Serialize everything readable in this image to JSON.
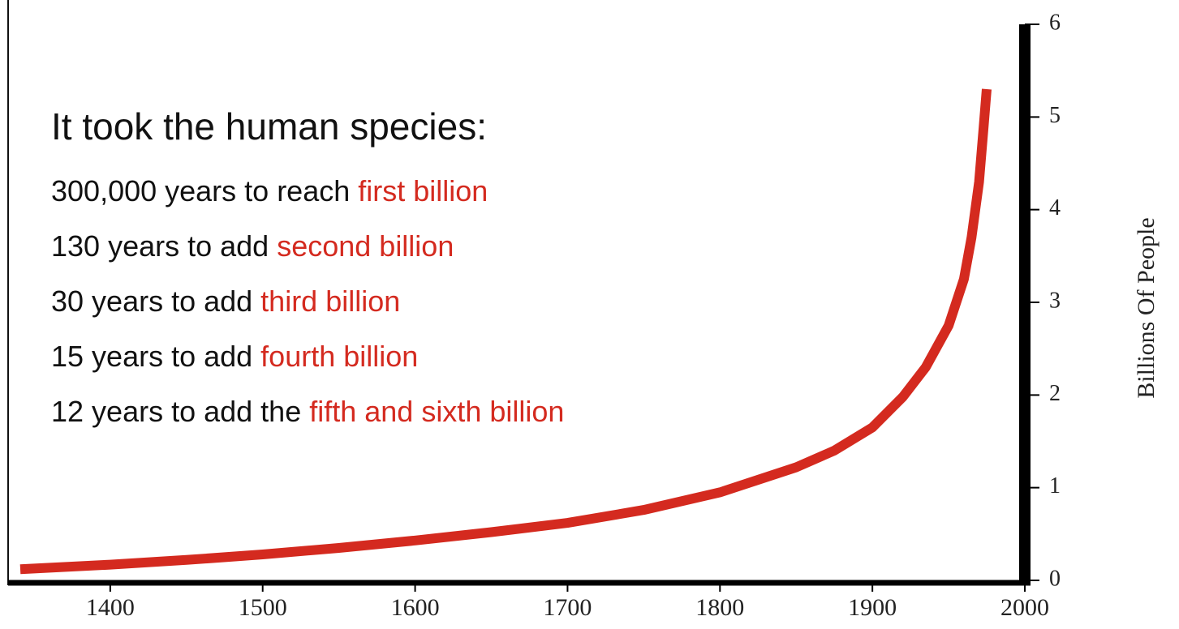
{
  "chart_data": {
    "type": "line",
    "title": "It took the human species:",
    "annotations": [
      {
        "text": "300,000 years to reach ",
        "highlight": "first billion"
      },
      {
        "text": "130 years to add ",
        "highlight": "second billion"
      },
      {
        "text": "30 years to add ",
        "highlight": "third billion"
      },
      {
        "text": "15 years to add ",
        "highlight": "fourth billion"
      },
      {
        "text": "12 years to add the ",
        "highlight": "fifth and sixth billion"
      }
    ],
    "highlight_color": "#d42a1f",
    "y_axis_label": "Billions Of People",
    "x": [
      1341,
      1400,
      1450,
      1500,
      1550,
      1600,
      1650,
      1700,
      1750,
      1800,
      1850,
      1875,
      1900,
      1920,
      1935,
      1950,
      1960,
      1965,
      1970,
      1973,
      1975
    ],
    "series": [
      {
        "color": "#d42a1f",
        "values": [
          0.12,
          0.17,
          0.22,
          0.28,
          0.35,
          0.43,
          0.52,
          0.62,
          0.76,
          0.95,
          1.22,
          1.4,
          1.65,
          1.98,
          2.3,
          2.75,
          3.25,
          3.7,
          4.3,
          4.9,
          5.3
        ]
      }
    ],
    "xlim": [
      1333,
      2000
    ],
    "xticks": [
      1400,
      1500,
      1600,
      1700,
      1800,
      1900,
      2000
    ],
    "ylim": [
      0,
      6
    ],
    "yticks": [
      0,
      1,
      2,
      3,
      4,
      5,
      6
    ],
    "y_axis_side": "right"
  }
}
